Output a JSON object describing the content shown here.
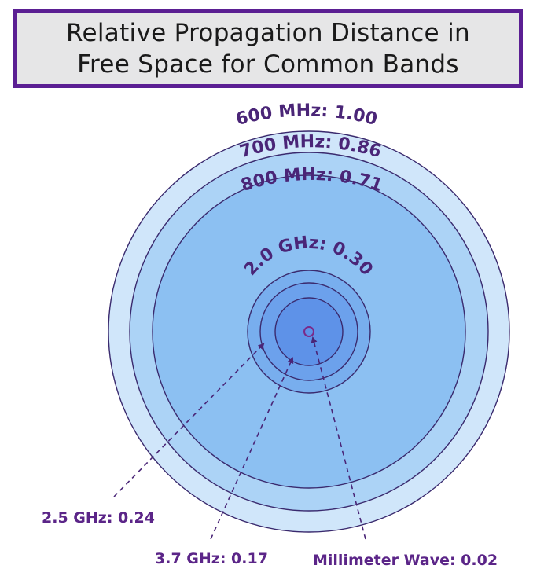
{
  "title": {
    "line1": "Relative Propagation Distance in",
    "line2": "Free Space for Common Bands"
  },
  "colors": {
    "title_border": "#5b1f93",
    "title_bg": "#e6e6e7",
    "ring_stroke": "#3a2a6e",
    "label_color": "#4a2577",
    "callout_color": "#5b2588"
  },
  "chart_data": {
    "type": "concentric-circles",
    "title": "Relative Propagation Distance in Free Space for Common Bands",
    "bands": [
      {
        "name": "600 MHz",
        "value": 1.0,
        "label": "600 MHz: 1.00",
        "fill": "#d0e6fa"
      },
      {
        "name": "700 MHz",
        "value": 0.86,
        "label": "700 MHz: 0.86",
        "fill": "#acd3f6"
      },
      {
        "name": "800 MHz",
        "value": 0.71,
        "label": "800 MHz: 0.71",
        "fill": "#8cc0f2"
      },
      {
        "name": "2.0 GHz",
        "value": 0.3,
        "label": "2.0 GHz: 0.30",
        "fill": "#78aeee"
      },
      {
        "name": "2.5 GHz",
        "value": 0.24,
        "label": "2.5 GHz: 0.24",
        "fill": "#6ca1ec"
      },
      {
        "name": "3.7 GHz",
        "value": 0.17,
        "label": "3.7 GHz: 0.17",
        "fill": "#5e92e8"
      },
      {
        "name": "Millimeter Wave",
        "value": 0.02,
        "label": "Millimeter Wave: 0.02",
        "fill": "#5e92e8"
      }
    ]
  }
}
